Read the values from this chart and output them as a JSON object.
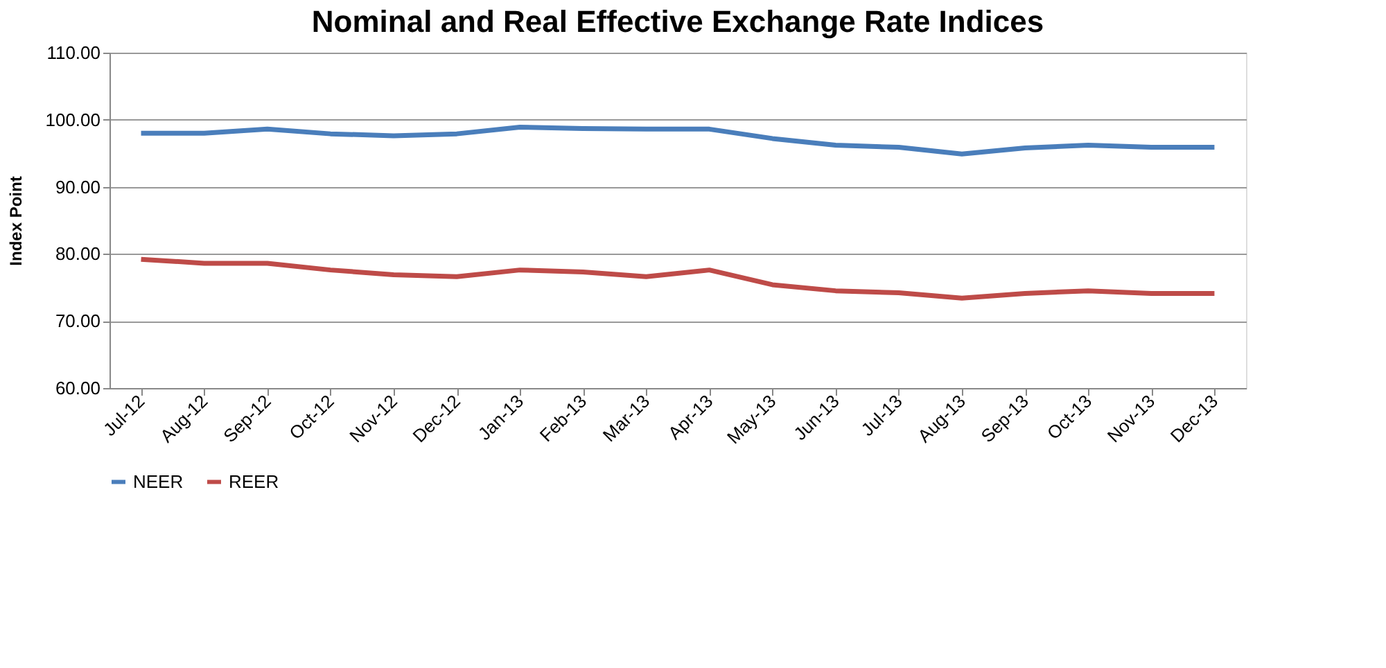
{
  "chart_data": {
    "type": "line",
    "title": "Nominal and Real Effective Exchange Rate Indices",
    "ylabel": "Index Point",
    "categories": [
      "Jul-12",
      "Aug-12",
      "Sep-12",
      "Oct-12",
      "Nov-12",
      "Dec-12",
      "Jan-13",
      "Feb-13",
      "Mar-13",
      "Apr-13",
      "May-13",
      "Jun-13",
      "Jul-13",
      "Aug-13",
      "Sep-13",
      "Oct-13",
      "Nov-13",
      "Dec-13"
    ],
    "series": [
      {
        "name": "NEER",
        "color": "#4a7ebb",
        "values": [
          98.0,
          98.0,
          98.6,
          97.9,
          97.6,
          97.9,
          98.9,
          98.7,
          98.6,
          98.6,
          97.2,
          96.2,
          95.9,
          94.9,
          95.8,
          96.2,
          95.9,
          95.9
        ]
      },
      {
        "name": "REER",
        "color": "#be4b48",
        "values": [
          79.2,
          78.6,
          78.6,
          77.6,
          76.9,
          76.6,
          77.6,
          77.3,
          76.6,
          77.6,
          75.4,
          74.5,
          74.2,
          73.4,
          74.1,
          74.5,
          74.1,
          74.1
        ]
      }
    ],
    "ylim": [
      60,
      110
    ],
    "yticks": [
      {
        "value": 60,
        "label": "60.00"
      },
      {
        "value": 70,
        "label": "70.00"
      },
      {
        "value": 80,
        "label": "80.00"
      },
      {
        "value": 90,
        "label": "90.00"
      },
      {
        "value": 100,
        "label": "100.00"
      },
      {
        "value": 110,
        "label": "110.00"
      }
    ],
    "grid": "y",
    "legend": "bottom",
    "marker": "none",
    "line_style": "solid"
  }
}
